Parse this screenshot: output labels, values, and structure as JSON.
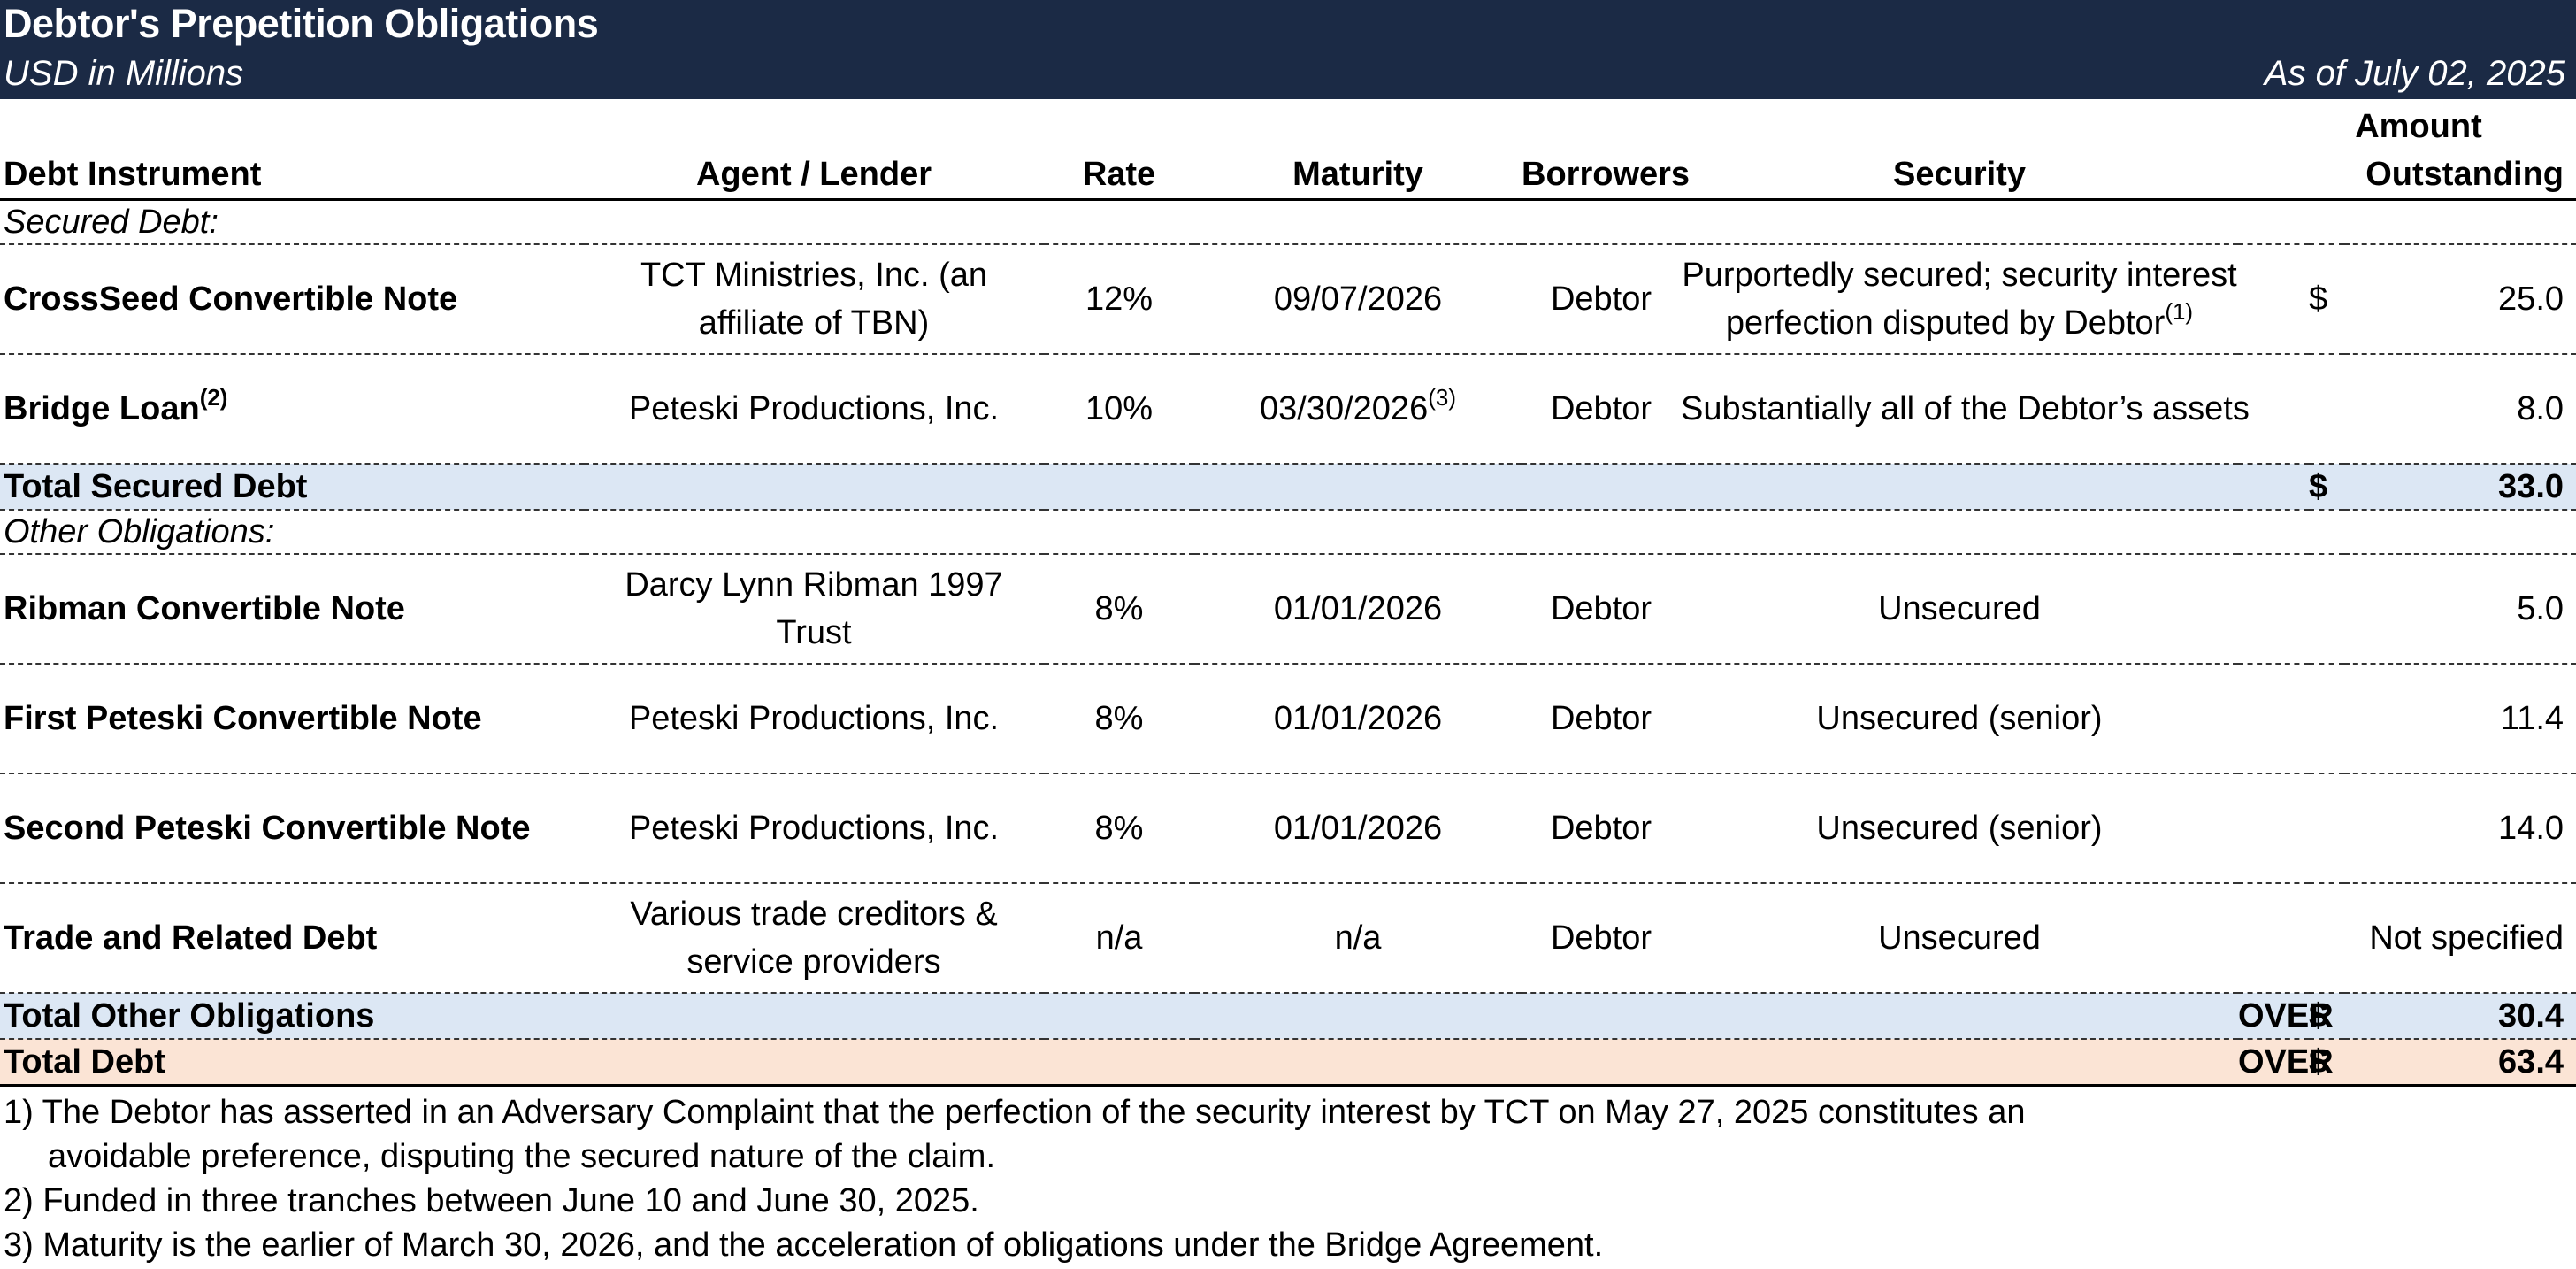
{
  "header": {
    "title": "Debtor's Prepetition Obligations",
    "units": "USD in Millions",
    "as_of": "As of July 02, 2025"
  },
  "columns": {
    "instrument": "Debt Instrument",
    "agent": "Agent / Lender",
    "rate": "Rate",
    "maturity": "Maturity",
    "borrowers": "Borrowers",
    "security": "Security",
    "amount_line1": "Amount",
    "amount_line2": "Outstanding"
  },
  "secured": {
    "heading": "Secured Debt:",
    "rows": [
      {
        "instrument": "CrossSeed Convertible Note",
        "instrument_sup": "",
        "agent_line1": "TCT Ministries, Inc. (an",
        "agent_line2": "affiliate of TBN)",
        "rate": "12%",
        "maturity": "09/07/2026",
        "maturity_sup": "",
        "borrowers": "Debtor",
        "security_line1": "Purportedly secured; security interest",
        "security_line2": "perfection disputed by Debtor",
        "security_sup": "(1)",
        "dollar": "$",
        "amount": "25.0"
      },
      {
        "instrument": "Bridge Loan",
        "instrument_sup": "(2)",
        "agent_line1": "Peteski Productions, Inc.",
        "agent_line2": "",
        "rate": "10%",
        "maturity": "03/30/2026",
        "maturity_sup": "(3)",
        "borrowers": "Debtor",
        "security_line1": "Substantially all of the Debtor’s assets",
        "security_line2": "",
        "security_sup": "",
        "dollar": "",
        "amount": "8.0"
      }
    ],
    "total_label": "Total Secured Debt",
    "total_dollar": "$",
    "total_amount": "33.0"
  },
  "other": {
    "heading": "Other Obligations:",
    "rows": [
      {
        "instrument": "Ribman Convertible Note",
        "agent_line1": "Darcy Lynn Ribman 1997",
        "agent_line2": "Trust",
        "rate": "8%",
        "maturity": "01/01/2026",
        "borrowers": "Debtor",
        "security": "Unsecured",
        "amount": "5.0"
      },
      {
        "instrument": "First Peteski Convertible Note",
        "agent_line1": "Peteski Productions, Inc.",
        "agent_line2": "",
        "rate": "8%",
        "maturity": "01/01/2026",
        "borrowers": "Debtor",
        "security": "Unsecured (senior)",
        "amount": "11.4"
      },
      {
        "instrument": "Second Peteski Convertible Note",
        "agent_line1": "Peteski Productions, Inc.",
        "agent_line2": "",
        "rate": "8%",
        "maturity": "01/01/2026",
        "borrowers": "Debtor",
        "security": "Unsecured (senior)",
        "amount": "14.0"
      },
      {
        "instrument": "Trade and Related Debt",
        "agent_line1": "Various trade creditors &",
        "agent_line2": "service providers",
        "rate": "n/a",
        "maturity": "n/a",
        "borrowers": "Debtor",
        "security": "Unsecured",
        "amount": "Not specified"
      }
    ],
    "total_label": "Total Other Obligations",
    "total_over": "OVER",
    "total_dollar": "$",
    "total_amount": "30.4"
  },
  "grand_total": {
    "label": "Total Debt",
    "over": "OVER",
    "dollar": "$",
    "amount": "63.4"
  },
  "footnotes": [
    {
      "line1": "1) The Debtor has asserted in an Adversary Complaint that the perfection of the security interest by TCT on May 27, 2025 constitutes an",
      "line2": "avoidable preference, disputing the secured nature of the claim."
    },
    {
      "line1": "2) Funded in three tranches between June 10 and June 30, 2025.",
      "line2": ""
    },
    {
      "line1": "3) Maturity is the earlier of March 30, 2026, and the acceleration of obligations under the Bridge Agreement.",
      "line2": ""
    }
  ]
}
